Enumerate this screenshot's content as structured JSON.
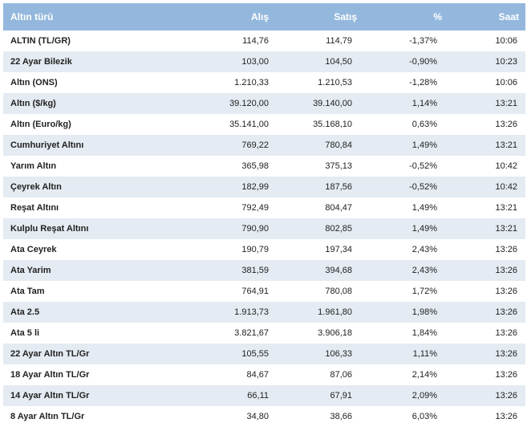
{
  "table": {
    "headers": {
      "name": "Altın türü",
      "buy": "Alış",
      "sell": "Satış",
      "pct": "%",
      "time": "Saat"
    },
    "rows": [
      {
        "name": "ALTIN (TL/GR)",
        "buy": "114,76",
        "sell": "114,79",
        "pct": "-1,37%",
        "time": "10:06"
      },
      {
        "name": "22 Ayar Bilezik",
        "buy": "103,00",
        "sell": "104,50",
        "pct": "-0,90%",
        "time": "10:23"
      },
      {
        "name": "Altın (ONS)",
        "buy": "1.210,33",
        "sell": "1.210,53",
        "pct": "-1,28%",
        "time": "10:06"
      },
      {
        "name": "Altın ($/kg)",
        "buy": "39.120,00",
        "sell": "39.140,00",
        "pct": "1,14%",
        "time": "13:21"
      },
      {
        "name": "Altın (Euro/kg)",
        "buy": "35.141,00",
        "sell": "35.168,10",
        "pct": "0,63%",
        "time": "13:26"
      },
      {
        "name": "Cumhuriyet Altını",
        "buy": "769,22",
        "sell": "780,84",
        "pct": "1,49%",
        "time": "13:21"
      },
      {
        "name": "Yarım Altın",
        "buy": "365,98",
        "sell": "375,13",
        "pct": "-0,52%",
        "time": "10:42"
      },
      {
        "name": "Çeyrek Altın",
        "buy": "182,99",
        "sell": "187,56",
        "pct": "-0,52%",
        "time": "10:42"
      },
      {
        "name": "Reşat Altını",
        "buy": "792,49",
        "sell": "804,47",
        "pct": "1,49%",
        "time": "13:21"
      },
      {
        "name": "Kulplu Reşat Altını",
        "buy": "790,90",
        "sell": "802,85",
        "pct": "1,49%",
        "time": "13:21"
      },
      {
        "name": "Ata Ceyrek",
        "buy": "190,79",
        "sell": "197,34",
        "pct": "2,43%",
        "time": "13:26"
      },
      {
        "name": "Ata Yarim",
        "buy": "381,59",
        "sell": "394,68",
        "pct": "2,43%",
        "time": "13:26"
      },
      {
        "name": "Ata Tam",
        "buy": "764,91",
        "sell": "780,08",
        "pct": "1,72%",
        "time": "13:26"
      },
      {
        "name": "Ata 2.5",
        "buy": "1.913,73",
        "sell": "1.961,80",
        "pct": "1,98%",
        "time": "13:26"
      },
      {
        "name": "Ata 5 li",
        "buy": "3.821,67",
        "sell": "3.906,18",
        "pct": "1,84%",
        "time": "13:26"
      },
      {
        "name": "22 Ayar Altın TL/Gr",
        "buy": "105,55",
        "sell": "106,33",
        "pct": "1,11%",
        "time": "13:26"
      },
      {
        "name": "18 Ayar Altın TL/Gr",
        "buy": "84,67",
        "sell": "87,06",
        "pct": "2,14%",
        "time": "13:26"
      },
      {
        "name": "14 Ayar Altın TL/Gr",
        "buy": "66,11",
        "sell": "67,91",
        "pct": "2,09%",
        "time": "13:26"
      },
      {
        "name": "8 Ayar Altın TL/Gr",
        "buy": "34,80",
        "sell": "38,66",
        "pct": "6,03%",
        "time": "13:26"
      }
    ]
  },
  "colors": {
    "header_bg": "#94b8dd",
    "row_alt_bg": "#e4ebf2",
    "text": "#222222"
  }
}
